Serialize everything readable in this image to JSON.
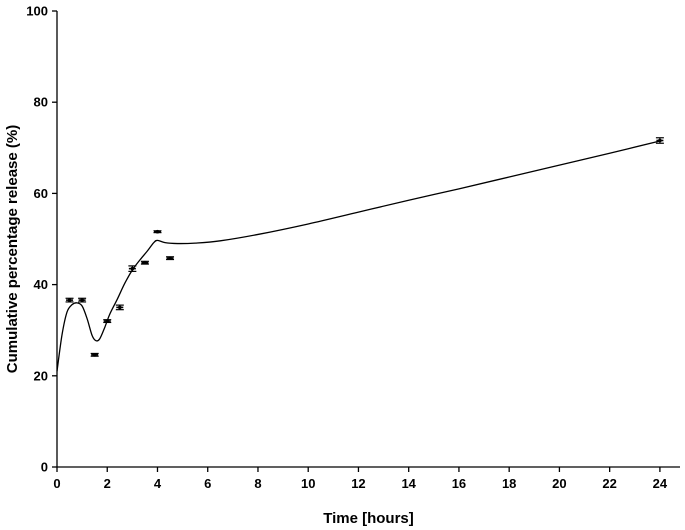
{
  "chart_data": {
    "type": "scatter",
    "title": "",
    "xlabel": "Time [hours]",
    "ylabel": "Cumulative percentage release (%)",
    "xlim": [
      0,
      24.8
    ],
    "ylim": [
      0,
      100
    ],
    "xticks": [
      0,
      2,
      4,
      6,
      8,
      10,
      12,
      14,
      16,
      18,
      20,
      22,
      24
    ],
    "yticks": [
      0,
      20,
      40,
      60,
      80,
      100
    ],
    "grid": false,
    "legend": "none",
    "series": [
      {
        "points": [
          {
            "x": 0.5,
            "y": 36.6,
            "err": 0.4
          },
          {
            "x": 1.0,
            "y": 36.6,
            "err": 0.4
          },
          {
            "x": 1.5,
            "y": 24.6,
            "err": 0.3
          },
          {
            "x": 2.0,
            "y": 32.0,
            "err": 0.3
          },
          {
            "x": 2.5,
            "y": 35.0,
            "err": 0.5
          },
          {
            "x": 3.0,
            "y": 43.5,
            "err": 0.6
          },
          {
            "x": 3.5,
            "y": 44.8,
            "err": 0.3
          },
          {
            "x": 4.0,
            "y": 51.6,
            "err": 0.2
          },
          {
            "x": 4.5,
            "y": 45.8,
            "err": 0.3
          },
          {
            "x": 24.0,
            "y": 71.6,
            "err": 0.6
          }
        ],
        "fit_curve": [
          [
            0.0,
            21.0
          ],
          [
            0.2,
            29.0
          ],
          [
            0.4,
            34.0
          ],
          [
            0.6,
            35.6
          ],
          [
            0.8,
            36.0
          ],
          [
            1.0,
            35.3
          ],
          [
            1.2,
            32.5
          ],
          [
            1.4,
            28.8
          ],
          [
            1.55,
            27.7
          ],
          [
            1.7,
            28.1
          ],
          [
            1.9,
            30.6
          ],
          [
            2.1,
            33.5
          ],
          [
            2.4,
            36.8
          ],
          [
            2.7,
            40.3
          ],
          [
            3.0,
            43.2
          ],
          [
            3.3,
            45.4
          ],
          [
            3.6,
            47.4
          ],
          [
            3.85,
            49.2
          ],
          [
            4.0,
            49.7
          ],
          [
            4.3,
            49.2
          ],
          [
            4.8,
            49.0
          ],
          [
            5.5,
            49.1
          ],
          [
            6.5,
            49.6
          ],
          [
            8.0,
            51.0
          ],
          [
            10.0,
            53.3
          ],
          [
            12.0,
            55.9
          ],
          [
            14.0,
            58.5
          ],
          [
            16.0,
            61.0
          ],
          [
            18.0,
            63.6
          ],
          [
            20.0,
            66.2
          ],
          [
            22.0,
            68.8
          ],
          [
            24.0,
            71.5
          ]
        ],
        "color": "#000000"
      }
    ]
  }
}
